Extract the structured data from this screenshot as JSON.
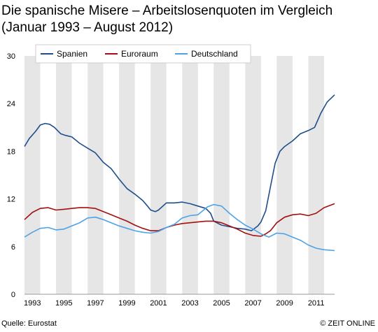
{
  "title_line1": "Die spanische Misere – Arbeitslosenquoten im Vergleich",
  "title_line2": "(Januar 1993 – August 2012)",
  "source": "Quelle: Eurostat",
  "credit": "© ZEIT ONLINE",
  "colors": {
    "spanien": "#1f4e8c",
    "euroraum": "#a50f0f",
    "deutschland": "#4da3e8",
    "band": "#e6e6e6"
  },
  "chart_data": {
    "type": "line",
    "title": "Die spanische Misere – Arbeitslosenquoten im Vergleich (Januar 1993 – August 2012)",
    "xlabel": "",
    "ylabel": "",
    "xlim": [
      1993.0,
      2012.67
    ],
    "ylim": [
      0,
      30
    ],
    "yticks": [
      0,
      6,
      12,
      18,
      24,
      30
    ],
    "xtick_labels": [
      "1993",
      "1995",
      "1997",
      "1999",
      "2001",
      "2003",
      "2005",
      "2007",
      "2009",
      "2011"
    ],
    "grid": false,
    "legend": "top",
    "shaded_years": [
      1993,
      1995,
      1997,
      1999,
      2001,
      2003,
      2005,
      2007,
      2009,
      2011
    ],
    "series": [
      {
        "name": "Spanien",
        "x": [
          1993.0,
          1993.3,
          1993.7,
          1994.0,
          1994.3,
          1994.6,
          1994.9,
          1995.3,
          1995.6,
          1996.0,
          1996.5,
          1997.0,
          1997.5,
          1998.0,
          1998.5,
          1999.0,
          1999.5,
          2000.0,
          2000.5,
          2000.8,
          2001.0,
          2001.3,
          2001.5,
          2002.0,
          2002.5,
          2003.0,
          2003.5,
          2004.0,
          2004.5,
          2004.8,
          2005.0,
          2005.5,
          2006.0,
          2006.5,
          2007.0,
          2007.4,
          2007.8,
          2008.0,
          2008.3,
          2008.6,
          2008.9,
          2009.2,
          2009.5,
          2010.0,
          2010.5,
          2011.0,
          2011.4,
          2011.8,
          2012.2,
          2012.67
        ],
        "values": [
          18.6,
          19.6,
          20.5,
          21.3,
          21.5,
          21.4,
          21.0,
          20.2,
          20.0,
          19.8,
          19.0,
          18.4,
          17.8,
          16.6,
          15.8,
          14.5,
          13.3,
          12.6,
          11.8,
          11.1,
          10.6,
          10.4,
          10.6,
          11.5,
          11.5,
          11.6,
          11.4,
          11.1,
          10.8,
          10.2,
          9.2,
          8.7,
          8.5,
          8.3,
          8.2,
          8.0,
          8.6,
          9.1,
          10.5,
          13.5,
          16.5,
          18.0,
          18.6,
          19.3,
          20.2,
          20.6,
          21.0,
          22.8,
          24.2,
          25.1
        ]
      },
      {
        "name": "Euroraum",
        "x": [
          1993.0,
          1993.5,
          1994.0,
          1994.5,
          1995.0,
          1995.5,
          1996.0,
          1996.5,
          1997.0,
          1997.5,
          1998.0,
          1998.5,
          1999.0,
          1999.5,
          2000.0,
          2000.5,
          2001.0,
          2001.5,
          2002.0,
          2002.5,
          2003.0,
          2003.5,
          2004.0,
          2004.5,
          2005.0,
          2005.5,
          2006.0,
          2006.5,
          2007.0,
          2007.5,
          2008.0,
          2008.3,
          2008.6,
          2009.0,
          2009.5,
          2010.0,
          2010.5,
          2011.0,
          2011.5,
          2012.0,
          2012.67
        ],
        "values": [
          9.4,
          10.3,
          10.8,
          10.9,
          10.6,
          10.7,
          10.8,
          10.9,
          10.9,
          10.8,
          10.4,
          10.0,
          9.6,
          9.2,
          8.7,
          8.3,
          8.0,
          8.0,
          8.4,
          8.7,
          8.9,
          9.0,
          9.1,
          9.2,
          9.2,
          9.0,
          8.6,
          8.2,
          7.7,
          7.4,
          7.3,
          7.6,
          8.0,
          9.0,
          9.7,
          10.0,
          10.1,
          9.9,
          10.2,
          10.9,
          11.4
        ]
      },
      {
        "name": "Deutschland",
        "x": [
          1993.0,
          1993.5,
          1994.0,
          1994.5,
          1995.0,
          1995.5,
          1996.0,
          1996.5,
          1997.0,
          1997.5,
          1998.0,
          1998.5,
          1999.0,
          1999.5,
          2000.0,
          2000.5,
          2001.0,
          2001.5,
          2002.0,
          2002.5,
          2003.0,
          2003.5,
          2004.0,
          2004.3,
          2004.6,
          2005.0,
          2005.5,
          2006.0,
          2006.5,
          2007.0,
          2007.5,
          2008.0,
          2008.5,
          2009.0,
          2009.5,
          2010.0,
          2010.5,
          2011.0,
          2011.5,
          2012.0,
          2012.67
        ],
        "values": [
          7.2,
          7.8,
          8.3,
          8.4,
          8.1,
          8.2,
          8.6,
          9.0,
          9.6,
          9.7,
          9.4,
          9.0,
          8.6,
          8.3,
          8.0,
          7.8,
          7.7,
          7.9,
          8.4,
          8.8,
          9.6,
          9.9,
          10.0,
          10.5,
          11.0,
          11.3,
          11.1,
          10.2,
          9.4,
          8.7,
          8.2,
          7.6,
          7.2,
          7.7,
          7.6,
          7.2,
          6.8,
          6.2,
          5.8,
          5.6,
          5.5
        ]
      }
    ]
  }
}
